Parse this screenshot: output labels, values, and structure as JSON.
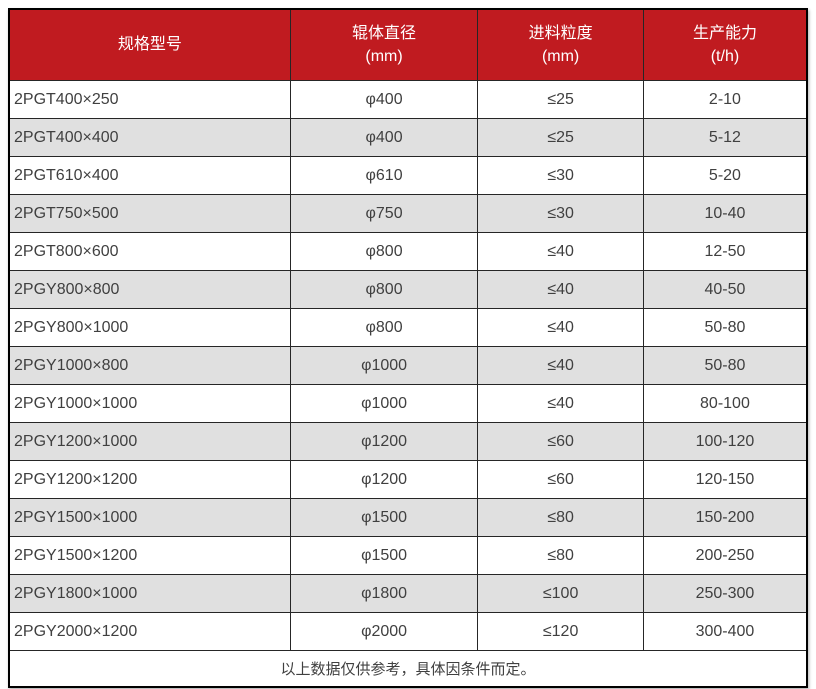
{
  "table": {
    "columns": [
      {
        "label": "规格型号",
        "unit": ""
      },
      {
        "label": "辊体直径",
        "unit": "(mm)"
      },
      {
        "label": "进料粒度",
        "unit": "(mm)"
      },
      {
        "label": "生产能力",
        "unit": "(t/h)"
      }
    ],
    "rows": [
      [
        "2PGT400×250",
        "φ400",
        "≤25",
        "2-10"
      ],
      [
        "2PGT400×400",
        "φ400",
        "≤25",
        "5-12"
      ],
      [
        "2PGT610×400",
        "φ610",
        "≤30",
        "5-20"
      ],
      [
        "2PGT750×500",
        "φ750",
        "≤30",
        "10-40"
      ],
      [
        "2PGT800×600",
        "φ800",
        "≤40",
        "12-50"
      ],
      [
        "2PGY800×800",
        "φ800",
        "≤40",
        "40-50"
      ],
      [
        "2PGY800×1000",
        "φ800",
        "≤40",
        "50-80"
      ],
      [
        "2PGY1000×800",
        "φ1000",
        "≤40",
        "50-80"
      ],
      [
        "2PGY1000×1000",
        "φ1000",
        "≤40",
        "80-100"
      ],
      [
        "2PGY1200×1000",
        "φ1200",
        "≤60",
        "100-120"
      ],
      [
        "2PGY1200×1200",
        "φ1200",
        "≤60",
        "120-150"
      ],
      [
        "2PGY1500×1000",
        "φ1500",
        "≤80",
        "150-200"
      ],
      [
        "2PGY1500×1200",
        "φ1500",
        "≤80",
        "200-250"
      ],
      [
        "2PGY1800×1000",
        "φ1800",
        "≤100",
        "250-300"
      ],
      [
        "2PGY2000×1200",
        "φ2000",
        "≤120",
        "300-400"
      ]
    ],
    "footnote": "以上数据仅供参考，具体因条件而定。",
    "colors": {
      "header_bg": "#c01b20",
      "header_text": "#ffffff",
      "row_bg": "#ffffff",
      "row_alt_bg": "#e0e0e0",
      "border": "#262626",
      "outer_border": "#000000",
      "text": "#404040"
    }
  }
}
